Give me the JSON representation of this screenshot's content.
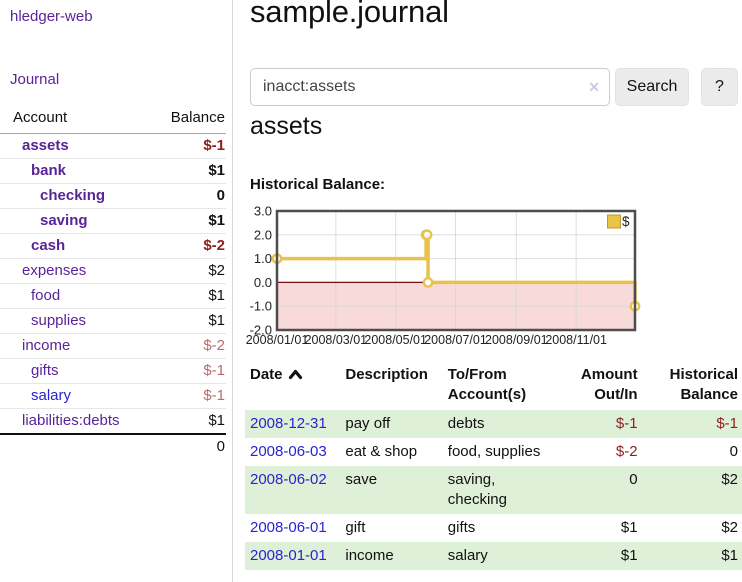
{
  "sidebar": {
    "brand": "hledger-web",
    "journal_link": "Journal",
    "accounts_table": {
      "headers": {
        "account": "Account",
        "balance": "Balance"
      },
      "rows": [
        {
          "name": "assets",
          "balance": "$-1",
          "depth": 1,
          "bold": true,
          "balance_tone": "neg-strong"
        },
        {
          "name": "bank",
          "balance": "$1",
          "depth": 2,
          "bold": true,
          "balance_tone": "normal"
        },
        {
          "name": "checking",
          "balance": "0",
          "depth": 3,
          "bold": true,
          "balance_tone": "normal"
        },
        {
          "name": "saving",
          "balance": "$1",
          "depth": 3,
          "bold": true,
          "balance_tone": "normal"
        },
        {
          "name": "cash",
          "balance": "$-2",
          "depth": 2,
          "bold": true,
          "balance_tone": "neg-strong"
        },
        {
          "name": "expenses",
          "balance": "$2",
          "depth": 1,
          "bold": false,
          "balance_tone": "normal"
        },
        {
          "name": "food",
          "balance": "$1",
          "depth": 2,
          "bold": false,
          "balance_tone": "normal"
        },
        {
          "name": "supplies",
          "balance": "$1",
          "depth": 2,
          "bold": false,
          "balance_tone": "normal"
        },
        {
          "name": "income",
          "balance": "$-2",
          "depth": 1,
          "bold": false,
          "balance_tone": "neg-soft"
        },
        {
          "name": "gifts",
          "balance": "$-1",
          "depth": 2,
          "bold": false,
          "balance_tone": "neg-soft"
        },
        {
          "name": "salary",
          "balance": "$-1",
          "depth": 2,
          "bold": false,
          "balance_tone": "neg-soft",
          "link_tone": "blue"
        },
        {
          "name": "liabilities:debts",
          "balance": "$1",
          "depth": 1,
          "bold": false,
          "balance_tone": "normal"
        }
      ],
      "total": "0"
    }
  },
  "main": {
    "title": "sample.journal",
    "search": {
      "value": "inacct:assets",
      "clear_icon": "✕",
      "button_label": "Search",
      "help_label": "?"
    },
    "account_heading": "assets",
    "chart_label": "Historical Balance:"
  },
  "chart_data": {
    "type": "line",
    "step": true,
    "title": "Historical Balance",
    "series": [
      {
        "name": "$",
        "x": [
          "2008-01-01",
          "2008-06-01",
          "2008-06-02",
          "2008-06-03",
          "2008-12-31"
        ],
        "values": [
          1,
          2,
          2,
          0,
          -1
        ]
      }
    ],
    "xlim": [
      "2008-01-01",
      "2008-12-31"
    ],
    "ylim": [
      -2,
      3
    ],
    "y_ticks": [
      "3.0",
      "2.0",
      "1.0",
      "0.0",
      "-1.0",
      "-2.0"
    ],
    "x_ticks": [
      "2008/01/01",
      "2008/03/01",
      "2008/05/01",
      "2008/07/01",
      "2008/09/01",
      "2008/11/01"
    ],
    "legend": {
      "position": "top-right",
      "label": "$"
    },
    "grid": true,
    "negative_region_shaded": true,
    "colors": {
      "line": "#e8c34b",
      "marker_fill": "#ffffff",
      "negative_area": "#f9dada",
      "zero_line": "#7a0f0f",
      "border": "#4d4d4d",
      "grid": "#d6d6d6",
      "legend_square": "#eac449",
      "legend_square_border": "#bb983a"
    }
  },
  "register": {
    "headers": {
      "date": "Date",
      "description": "Description",
      "accounts": "To/From Account(s)",
      "amount": "Amount Out/In",
      "balance": "Historical Balance"
    },
    "rows": [
      {
        "date": "2008-12-31",
        "description": "pay off",
        "accounts": "debts",
        "amount": "$-1",
        "balance": "$-1"
      },
      {
        "date": "2008-06-03",
        "description": "eat & shop",
        "accounts": "food, supplies",
        "amount": "$-2",
        "balance": "0"
      },
      {
        "date": "2008-06-02",
        "description": "save",
        "accounts": "saving, checking",
        "amount": "0",
        "balance": "$2"
      },
      {
        "date": "2008-06-01",
        "description": "gift",
        "accounts": "gifts",
        "amount": "$1",
        "balance": "$2"
      },
      {
        "date": "2008-01-01",
        "description": "income",
        "accounts": "salary",
        "amount": "$1",
        "balance": "$1"
      }
    ]
  }
}
